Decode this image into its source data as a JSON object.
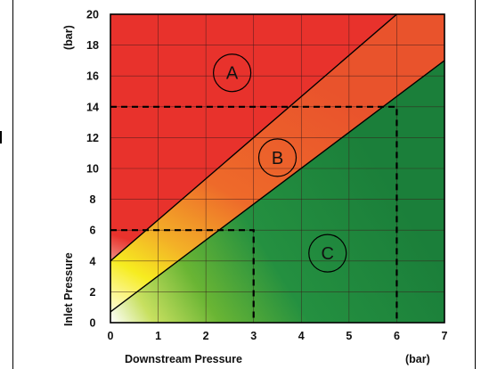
{
  "chart_data": {
    "type": "area",
    "title": "",
    "xlabel": "Downstream Pressure",
    "xunit": "(bar)",
    "ylabel": "Inlet Pressure",
    "yunit": "(bar)",
    "xlim": [
      0,
      7
    ],
    "ylim": [
      0,
      20
    ],
    "x_ticks": [
      "0",
      "1",
      "2",
      "3",
      "4",
      "5",
      "6",
      "7"
    ],
    "y_ticks": [
      "0",
      "2",
      "4",
      "6",
      "8",
      "10",
      "12",
      "14",
      "16",
      "18",
      "20"
    ],
    "grid": true,
    "boundaries": [
      {
        "points": [
          [
            0,
            4.0
          ],
          [
            6.0,
            20
          ]
        ]
      },
      {
        "points": [
          [
            0,
            0.7
          ],
          [
            7,
            17.0
          ]
        ]
      }
    ],
    "zones": [
      {
        "label": "A",
        "x": 2.55,
        "y": 16.2,
        "color": "#e8322c"
      },
      {
        "label": "B",
        "x": 3.5,
        "y": 10.7,
        "color": "#ee6a2a"
      },
      {
        "label": "C",
        "x": 4.55,
        "y": 4.5,
        "color": "#249040"
      }
    ],
    "reference_lines": [
      {
        "points": [
          [
            0,
            14
          ],
          [
            6,
            14
          ],
          [
            6,
            0
          ]
        ]
      },
      {
        "points": [
          [
            0,
            6
          ],
          [
            3,
            6
          ],
          [
            3,
            0
          ]
        ]
      }
    ]
  }
}
